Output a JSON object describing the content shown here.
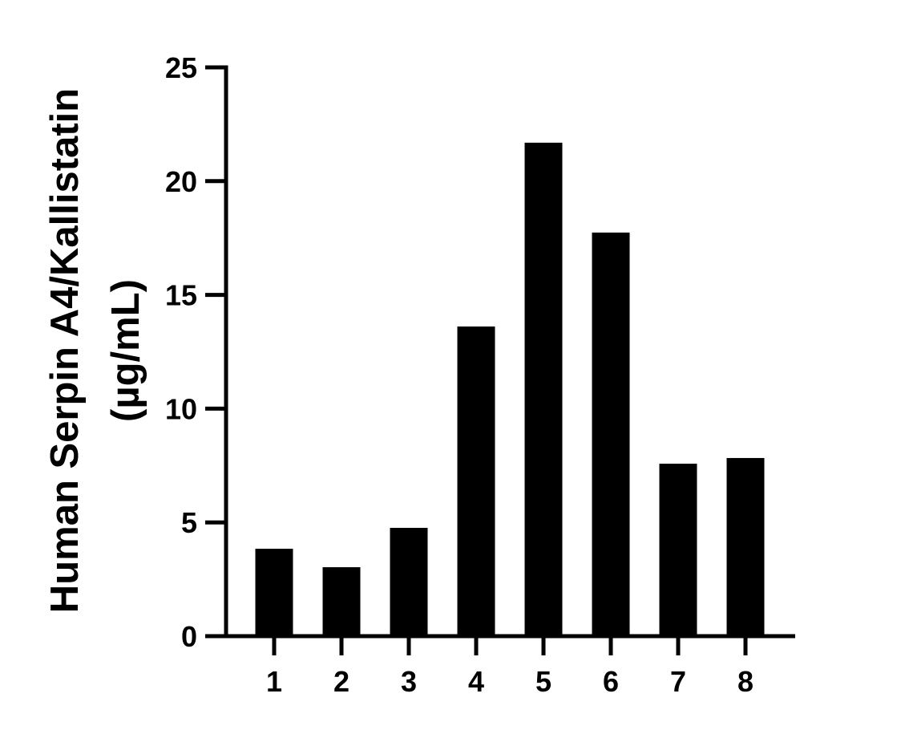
{
  "chart_data": {
    "type": "bar",
    "title": "",
    "xlabel": "",
    "ylabel_lines": [
      "Human Serpin A4/Kallistatin",
      "(µg/mL)"
    ],
    "categories": [
      "1",
      "2",
      "3",
      "4",
      "5",
      "6",
      "7",
      "8"
    ],
    "values": [
      3.84,
      3.03,
      4.76,
      13.61,
      21.69,
      17.74,
      7.58,
      7.83
    ],
    "ylim": [
      0,
      25
    ],
    "yticks": [
      "0",
      "5",
      "10",
      "15",
      "20",
      "25"
    ],
    "grid": false,
    "bar_color": "#000000"
  }
}
